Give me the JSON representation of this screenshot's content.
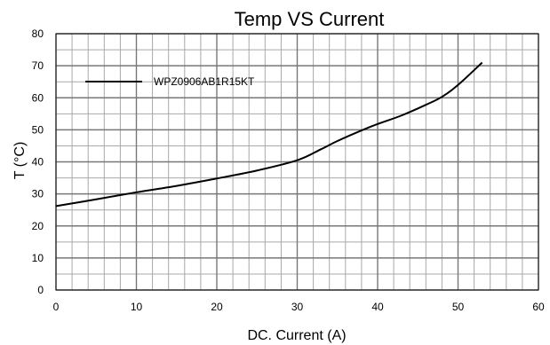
{
  "chart_data": {
    "type": "line",
    "title": "Temp VS Current",
    "xlabel": "DC. Current (A)",
    "ylabel": "T (°C)",
    "xlim": [
      0,
      60
    ],
    "ylim": [
      0,
      80
    ],
    "xticks": [
      0,
      10,
      20,
      30,
      40,
      50,
      60
    ],
    "yticks": [
      0,
      10,
      20,
      30,
      40,
      50,
      60,
      70,
      80
    ],
    "x_minor_step": 2,
    "y_minor_step": 5,
    "grid": true,
    "legend_position": "top-left",
    "series": [
      {
        "name": "WPZ0906AB1R15KT",
        "color": "#000000",
        "x": [
          0,
          5,
          10,
          15,
          20,
          25,
          30,
          33,
          35,
          38,
          40,
          43,
          46,
          48,
          50,
          53
        ],
        "y": [
          26.2,
          28.3,
          30.5,
          32.5,
          34.8,
          37.3,
          40.5,
          44,
          46.5,
          49.8,
          51.8,
          54.5,
          57.8,
          60.3,
          64,
          71
        ]
      }
    ]
  }
}
